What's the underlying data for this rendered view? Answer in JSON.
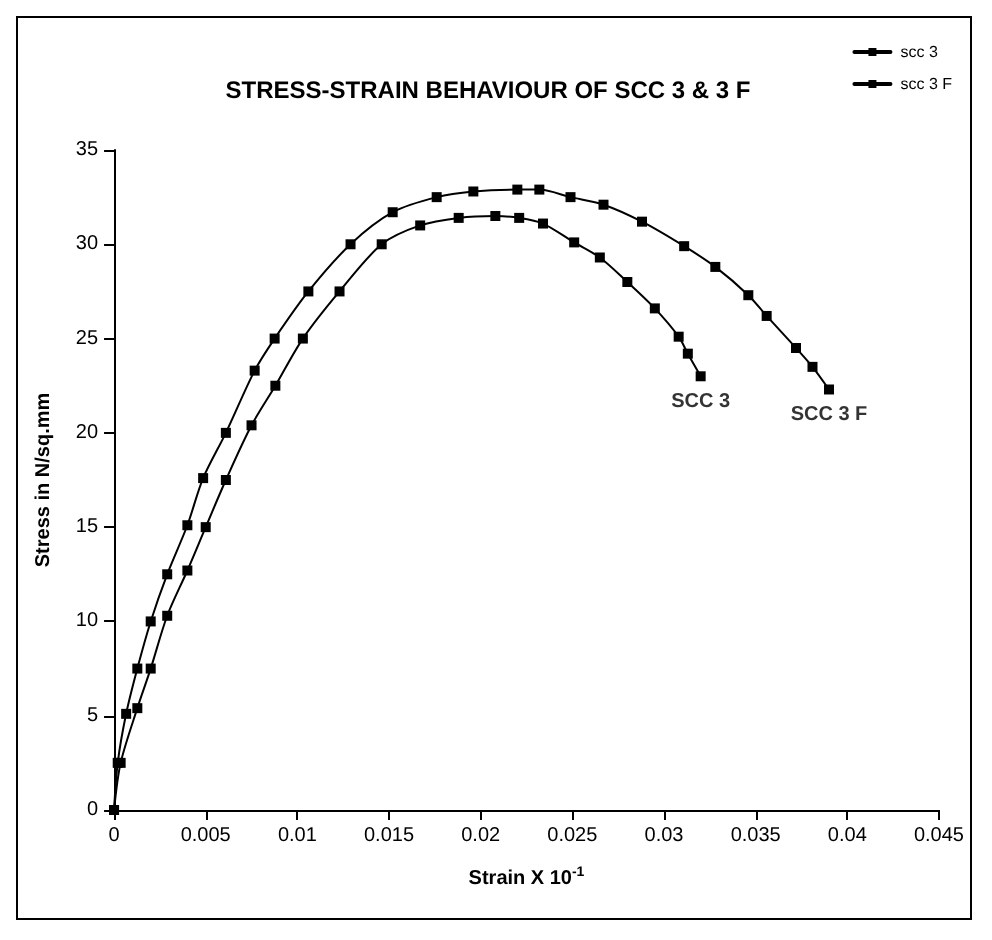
{
  "chart_data": {
    "type": "line",
    "title": "STRESS-STRAIN BEHAVIOUR OF SCC 3 & 3 F",
    "xlabel": "Strain X 10$^{-1}$",
    "ylabel": "Stress in N/sq.mm",
    "xlim": [
      0,
      0.045
    ],
    "xticks": [
      0,
      0.005,
      0.01,
      0.015,
      0.02,
      0.025,
      0.03,
      0.035,
      0.04,
      0.045
    ],
    "ylim": [
      0,
      35
    ],
    "yticks": [
      0,
      5,
      10,
      15,
      20,
      25,
      30,
      35
    ],
    "grid": false,
    "legend": "top right",
    "marker": "square",
    "line_style": "solid",
    "series": [
      {
        "name": "scc 3",
        "color": "#000000",
        "x": [
          0,
          0.00036,
          0.00127,
          0.002,
          0.0029,
          0.004,
          0.005,
          0.0061,
          0.0075,
          0.0088,
          0.0103,
          0.0123,
          0.0146,
          0.0167,
          0.0188,
          0.0208,
          0.0221,
          0.0234,
          0.0251,
          0.0265,
          0.028,
          0.0295,
          0.0308,
          0.0313,
          0.032
        ],
        "values": [
          0,
          2.5,
          5.4,
          7.5,
          10.3,
          12.7,
          15,
          17.5,
          20.4,
          22.5,
          25,
          27.5,
          30,
          31,
          31.4,
          31.5,
          31.4,
          31.1,
          30.1,
          29.3,
          28,
          26.6,
          25.1,
          24.2,
          23
        ]
      },
      {
        "name": "scc 3 F",
        "color": "#000000",
        "x": [
          0,
          0.0002,
          0.00066,
          0.00127,
          0.002,
          0.0029,
          0.004,
          0.00486,
          0.0061,
          0.00767,
          0.00876,
          0.0106,
          0.0129,
          0.0152,
          0.0176,
          0.0196,
          0.022,
          0.0232,
          0.0249,
          0.0267,
          0.0288,
          0.0311,
          0.0328,
          0.0346,
          0.0356,
          0.0372,
          0.0381,
          0.039
        ],
        "values": [
          0,
          2.5,
          5.1,
          7.5,
          10,
          12.5,
          15.1,
          17.6,
          20,
          23.3,
          25,
          27.5,
          30,
          31.7,
          32.5,
          32.8,
          32.9,
          32.9,
          32.5,
          32.1,
          31.2,
          29.9,
          28.8,
          27.3,
          26.2,
          24.5,
          23.5,
          22.3
        ]
      }
    ],
    "annotations": [
      {
        "text": "SCC 3",
        "x": 0.032,
        "y": 23
      },
      {
        "text": "SCC 3 F",
        "x": 0.039,
        "y": 22.3
      }
    ]
  }
}
